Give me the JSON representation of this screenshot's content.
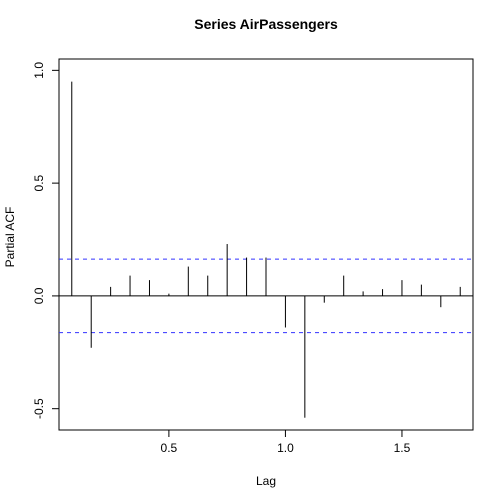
{
  "chart_data": {
    "type": "bar",
    "title": "Series  AirPassengers",
    "xlabel": "Lag",
    "ylabel": "Partial ACF",
    "xlim": [
      0.0285,
      1.8048
    ],
    "ylim": [
      -0.5945,
      1.0503
    ],
    "x_ticks": [
      {
        "value": 0.5,
        "label": "0.5"
      },
      {
        "value": 1.0,
        "label": "1.0"
      },
      {
        "value": 1.5,
        "label": "1.5"
      }
    ],
    "y_ticks": [
      {
        "value": -0.5,
        "label": "-0.5"
      },
      {
        "value": 0.0,
        "label": "0.0"
      },
      {
        "value": 0.5,
        "label": "0.5"
      },
      {
        "value": 1.0,
        "label": "1.0"
      }
    ],
    "lags": [
      0.0833,
      0.1667,
      0.25,
      0.3333,
      0.4167,
      0.5,
      0.5833,
      0.6667,
      0.75,
      0.8333,
      0.9167,
      1.0,
      1.0833,
      1.1667,
      1.25,
      1.3333,
      1.4167,
      1.5,
      1.5833,
      1.6667,
      1.75
    ],
    "values": [
      0.95,
      -0.23,
      0.04,
      0.09,
      0.07,
      0.01,
      0.13,
      0.09,
      0.23,
      0.17,
      0.17,
      -0.14,
      -0.54,
      -0.03,
      0.09,
      0.02,
      0.03,
      0.07,
      0.05,
      -0.05,
      0.04
    ],
    "confidence_bound": 0.163,
    "colors": {
      "bars": "#000000",
      "confidence": "#3333ff",
      "zero_line": "#000000",
      "frame": "#000000"
    }
  }
}
